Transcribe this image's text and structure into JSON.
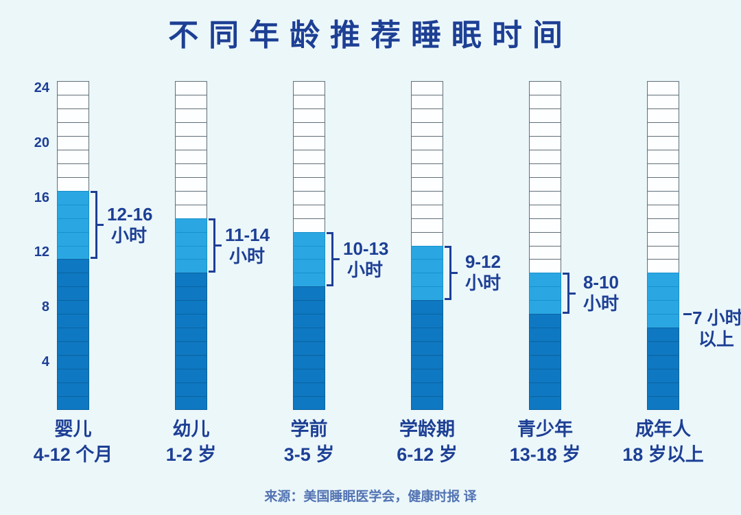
{
  "title": "不同年龄推荐睡眠时间",
  "source": "来源：美国睡眠医学会，健康时报 译",
  "colors": {
    "background": "#ecf7fa",
    "navy_text": "#1d3f94",
    "source_text": "#5273b3",
    "bar_light": "#2aa7e2",
    "bar_light_border": "#1691cd",
    "bar_dark": "#0e78c2",
    "bar_dark_border": "#0b639f",
    "bar_empty": "#fdfeff",
    "bar_empty_border": "#5f6e77"
  },
  "chart_data": {
    "type": "bar",
    "title": "不同年龄推荐睡眠时间",
    "unit": "小时",
    "ylim": [
      0,
      24
    ],
    "yticks": [
      24,
      20,
      16,
      12,
      8,
      4
    ],
    "hours_per_cell": 1,
    "cells_per_bar": 24,
    "legend_note": "dark = minimum hours, light = recommended range, white = remaining hours of the day",
    "groups": [
      {
        "name": "婴儿",
        "age": "4-12 个月",
        "sleep_min": 12,
        "sleep_max": 16,
        "fill_max": 16,
        "annotation": "bracket",
        "label_line1": "12-16",
        "label_line2": "小时"
      },
      {
        "name": "幼儿",
        "age": "1-2 岁",
        "sleep_min": 11,
        "sleep_max": 14,
        "fill_max": 14,
        "annotation": "bracket",
        "label_line1": "11-14",
        "label_line2": "小时"
      },
      {
        "name": "学前",
        "age": "3-5 岁",
        "sleep_min": 10,
        "sleep_max": 13,
        "fill_max": 13,
        "annotation": "bracket",
        "label_line1": "10-13",
        "label_line2": "小时"
      },
      {
        "name": "学龄期",
        "age": "6-12 岁",
        "sleep_min": 9,
        "sleep_max": 12,
        "fill_max": 12,
        "annotation": "bracket",
        "label_line1": "9-12",
        "label_line2": "小时"
      },
      {
        "name": "青少年",
        "age": "13-18 岁",
        "sleep_min": 8,
        "sleep_max": 10,
        "fill_max": 10,
        "annotation": "bracket",
        "label_line1": "8-10",
        "label_line2": "小时"
      },
      {
        "name": "成年人",
        "age": "18 岁以上",
        "sleep_min": 7,
        "sleep_max": null,
        "fill_max": 10,
        "annotation": "tick",
        "label_line1": "7 小时",
        "label_line2": "以上"
      }
    ]
  }
}
